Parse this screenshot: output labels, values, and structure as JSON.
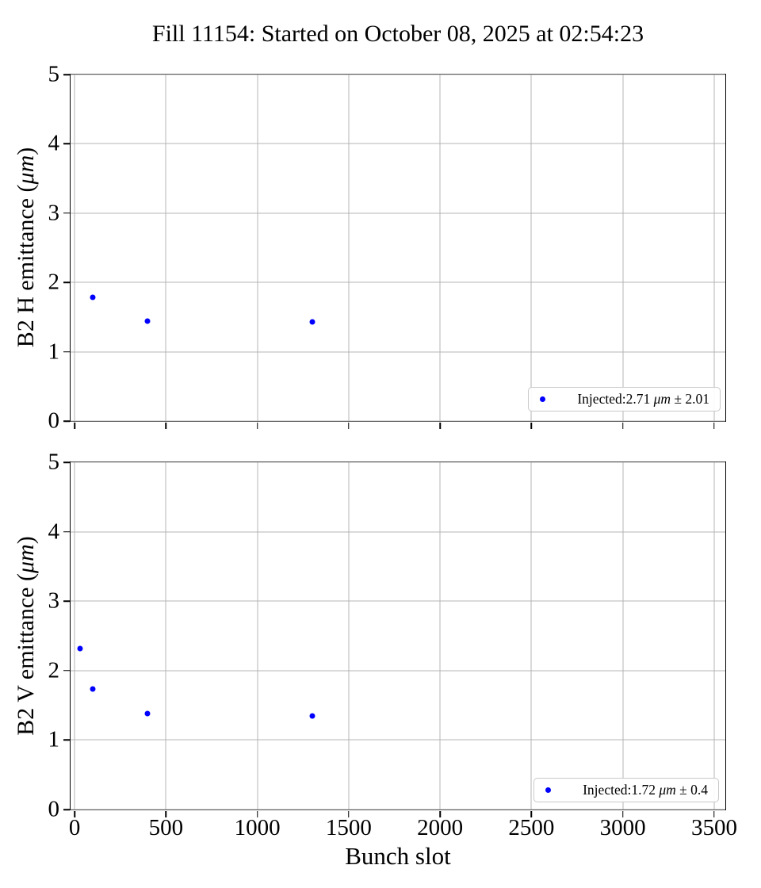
{
  "figure": {
    "title": "Fill 11154: Started on October 08, 2025 at 02:54:23",
    "background": "#ffffff",
    "grid_color": "#b4b4b4",
    "spine_color": "#000000"
  },
  "chart_data": [
    {
      "type": "scatter",
      "title": "",
      "xlabel": "",
      "ylabel": "B2 H emittance (μm)",
      "ylabel_parts": {
        "prefix": "B2 H emittance (",
        "unit": "μm",
        "suffix": ")"
      },
      "xlim": [
        -22,
        3561
      ],
      "ylim": [
        0,
        5
      ],
      "xticks": [
        0,
        500,
        1000,
        1500,
        2000,
        2500,
        3000,
        3500
      ],
      "yticks": [
        0,
        1,
        2,
        3,
        4,
        5
      ],
      "show_x_tick_labels": false,
      "grid": true,
      "marker_color": "#0000ff",
      "series": [
        {
          "name": "Injected",
          "x": [
            100,
            400,
            1300
          ],
          "y": [
            1.79,
            1.44,
            1.43
          ]
        }
      ],
      "legend": {
        "position": "lower right",
        "marker_color": "#0000ff",
        "label": "Injected:2.71 μm ± 2.01",
        "label_prefix": "Injected:2.71 ",
        "label_unit": "μm",
        "label_suffix": " ± 2.01"
      }
    },
    {
      "type": "scatter",
      "title": "",
      "xlabel": "Bunch slot",
      "ylabel": "B2 V emittance (μm)",
      "ylabel_parts": {
        "prefix": "B2 V emittance (",
        "unit": "μm",
        "suffix": ")"
      },
      "xlim": [
        -22,
        3561
      ],
      "ylim": [
        0,
        5
      ],
      "xticks": [
        0,
        500,
        1000,
        1500,
        2000,
        2500,
        3000,
        3500
      ],
      "yticks": [
        0,
        1,
        2,
        3,
        4,
        5
      ],
      "show_x_tick_labels": true,
      "grid": true,
      "marker_color": "#0000ff",
      "series": [
        {
          "name": "Injected",
          "x": [
            30,
            100,
            400,
            1300
          ],
          "y": [
            2.32,
            1.74,
            1.38,
            1.35
          ]
        }
      ],
      "legend": {
        "position": "lower right",
        "marker_color": "#0000ff",
        "label": "Injected:1.72 μm ± 0.4",
        "label_prefix": "Injected:1.72 ",
        "label_unit": "μm",
        "label_suffix": " ± 0.4"
      }
    }
  ]
}
